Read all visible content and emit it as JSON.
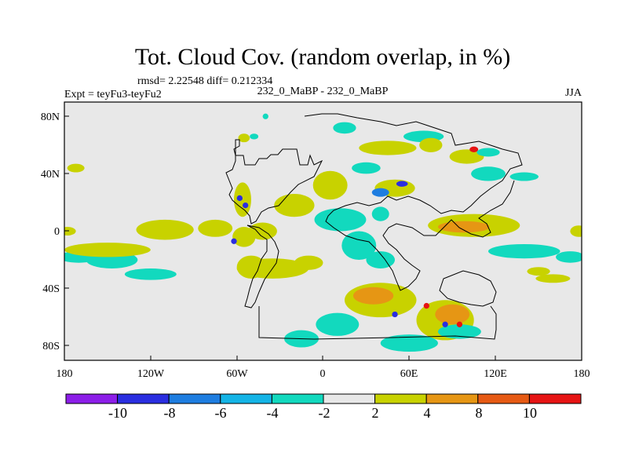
{
  "chart_data": {
    "type": "heatmap",
    "title": "Tot. Cloud Cov. (random overlap, in %)",
    "stats_line": "rmsd= 2.22548 diff= 0.212334",
    "left_label": "Expt = teyFu3-teyFu2",
    "center_label": "232_0_MaBP - 232_0_MaBP",
    "right_label": "JJA",
    "x_axis": {
      "range": [
        -180,
        180
      ],
      "ticks": [
        -180,
        -120,
        -60,
        0,
        60,
        120,
        180
      ],
      "tick_labels": [
        "180",
        "120W",
        "60W",
        "0",
        "60E",
        "120E",
        "180"
      ]
    },
    "y_axis": {
      "range": [
        -90,
        90
      ],
      "ticks": [
        80,
        40,
        0,
        -40,
        -80
      ],
      "tick_labels": [
        "80N",
        "40N",
        "0",
        "40S",
        "80S"
      ]
    },
    "colorbar": {
      "levels": [
        "-10",
        "-8",
        "-6",
        "-4",
        "-2",
        "2",
        "4",
        "8",
        "10"
      ],
      "colors": [
        "#8c1ee8",
        "#2a2ee0",
        "#1e7de0",
        "#14b4e6",
        "#12d9be",
        "#e8e8e8",
        "#c8d200",
        "#e69614",
        "#e65a14",
        "#e61414"
      ]
    },
    "blobs": [
      {
        "lon": -170,
        "lat": -18,
        "rx": 14,
        "ry": 4,
        "level": "-4"
      },
      {
        "lon": -147,
        "lat": -20,
        "rx": 18,
        "ry": 6,
        "level": "-4"
      },
      {
        "lon": -120,
        "lat": -30,
        "rx": 18,
        "ry": 4,
        "level": "-4"
      },
      {
        "lon": -150,
        "lat": -13,
        "rx": 30,
        "ry": 5,
        "level": "2"
      },
      {
        "lon": -140,
        "lat": -14,
        "rx": 8,
        "ry": 2,
        "level": "4"
      },
      {
        "lon": -172,
        "lat": 44,
        "rx": 6,
        "ry": 3,
        "level": "2"
      },
      {
        "lon": -178,
        "lat": 0,
        "rx": 6,
        "ry": 3,
        "level": "2"
      },
      {
        "lon": -110,
        "lat": 1,
        "rx": 20,
        "ry": 7,
        "level": "2"
      },
      {
        "lon": -75,
        "lat": 2,
        "rx": 12,
        "ry": 6,
        "level": "2"
      },
      {
        "lon": -56,
        "lat": 22,
        "rx": 6,
        "ry": 12,
        "level": "2"
      },
      {
        "lon": -58,
        "lat": 23,
        "rx": 2,
        "ry": 2,
        "level": "-8"
      },
      {
        "lon": -54,
        "lat": 18,
        "rx": 2,
        "ry": 2,
        "level": "-8"
      },
      {
        "lon": -55,
        "lat": -4,
        "rx": 8,
        "ry": 7,
        "level": "4"
      },
      {
        "lon": -62,
        "lat": -7,
        "rx": 2,
        "ry": 2,
        "level": "-8"
      },
      {
        "lon": -50,
        "lat": -25,
        "rx": 10,
        "ry": 8,
        "level": "4"
      },
      {
        "lon": -42,
        "lat": 0,
        "rx": 10,
        "ry": 6,
        "level": "2"
      },
      {
        "lon": -35,
        "lat": -26,
        "rx": 25,
        "ry": 7,
        "level": "2"
      },
      {
        "lon": -10,
        "lat": -22,
        "rx": 10,
        "ry": 5,
        "level": "2"
      },
      {
        "lon": -20,
        "lat": 18,
        "rx": 14,
        "ry": 8,
        "level": "2"
      },
      {
        "lon": -18,
        "lat": 14,
        "rx": 6,
        "ry": 3,
        "level": "4"
      },
      {
        "lon": 5,
        "lat": 32,
        "rx": 12,
        "ry": 10,
        "level": "2"
      },
      {
        "lon": 12,
        "lat": 8,
        "rx": 18,
        "ry": 8,
        "level": "-4"
      },
      {
        "lon": 25,
        "lat": -10,
        "rx": 12,
        "ry": 10,
        "level": "-4"
      },
      {
        "lon": 40,
        "lat": -20,
        "rx": 10,
        "ry": 6,
        "level": "-4"
      },
      {
        "lon": 40,
        "lat": 12,
        "rx": 6,
        "ry": 5,
        "level": "-4"
      },
      {
        "lon": 50,
        "lat": 30,
        "rx": 14,
        "ry": 6,
        "level": "2"
      },
      {
        "lon": 40,
        "lat": 27,
        "rx": 6,
        "ry": 3,
        "level": "-6"
      },
      {
        "lon": 55,
        "lat": 33,
        "rx": 4,
        "ry": 2,
        "level": "-8"
      },
      {
        "lon": 45,
        "lat": 58,
        "rx": 20,
        "ry": 5,
        "level": "2"
      },
      {
        "lon": 70,
        "lat": 66,
        "rx": 14,
        "ry": 4,
        "level": "-4"
      },
      {
        "lon": 15,
        "lat": 72,
        "rx": 8,
        "ry": 4,
        "level": "-4"
      },
      {
        "lon": 30,
        "lat": 44,
        "rx": 10,
        "ry": 4,
        "level": "-4"
      },
      {
        "lon": 75,
        "lat": 60,
        "rx": 8,
        "ry": 5,
        "level": "4"
      },
      {
        "lon": 100,
        "lat": 52,
        "rx": 12,
        "ry": 5,
        "level": "4"
      },
      {
        "lon": 105,
        "lat": 57,
        "rx": 3,
        "ry": 2,
        "level": "10"
      },
      {
        "lon": 115,
        "lat": 55,
        "rx": 8,
        "ry": 3,
        "level": "-4"
      },
      {
        "lon": 115,
        "lat": 40,
        "rx": 12,
        "ry": 5,
        "level": "-4"
      },
      {
        "lon": 140,
        "lat": 38,
        "rx": 10,
        "ry": 3,
        "level": "-4"
      },
      {
        "lon": 105,
        "lat": 4,
        "rx": 32,
        "ry": 8,
        "level": "4"
      },
      {
        "lon": 98,
        "lat": 3,
        "rx": 18,
        "ry": 4,
        "level": "8"
      },
      {
        "lon": 125,
        "lat": 2,
        "rx": 10,
        "ry": 3,
        "level": "2"
      },
      {
        "lon": 140,
        "lat": -14,
        "rx": 25,
        "ry": 5,
        "level": "-4"
      },
      {
        "lon": 172,
        "lat": -18,
        "rx": 10,
        "ry": 4,
        "level": "-4"
      },
      {
        "lon": 178,
        "lat": 0,
        "rx": 6,
        "ry": 4,
        "level": "2"
      },
      {
        "lon": 160,
        "lat": -33,
        "rx": 12,
        "ry": 3,
        "level": "2"
      },
      {
        "lon": 150,
        "lat": -28,
        "rx": 8,
        "ry": 3,
        "level": "2"
      },
      {
        "lon": 40,
        "lat": -48,
        "rx": 25,
        "ry": 12,
        "level": "4"
      },
      {
        "lon": 35,
        "lat": -45,
        "rx": 14,
        "ry": 6,
        "level": "8"
      },
      {
        "lon": 85,
        "lat": -62,
        "rx": 20,
        "ry": 14,
        "level": "4"
      },
      {
        "lon": 90,
        "lat": -58,
        "rx": 12,
        "ry": 7,
        "level": "8"
      },
      {
        "lon": 10,
        "lat": -65,
        "rx": 15,
        "ry": 8,
        "level": "-4"
      },
      {
        "lon": 60,
        "lat": -78,
        "rx": 20,
        "ry": 6,
        "level": "-4"
      },
      {
        "lon": 95,
        "lat": -70,
        "rx": 15,
        "ry": 5,
        "level": "-4"
      },
      {
        "lon": -15,
        "lat": -75,
        "rx": 12,
        "ry": 6,
        "level": "-4"
      },
      {
        "lon": 50,
        "lat": -58,
        "rx": 2,
        "ry": 2,
        "level": "-8"
      },
      {
        "lon": 85,
        "lat": -65,
        "rx": 2,
        "ry": 2,
        "level": "-8"
      },
      {
        "lon": 95,
        "lat": -65,
        "rx": 2,
        "ry": 2,
        "level": "10"
      },
      {
        "lon": 72,
        "lat": -52,
        "rx": 2,
        "ry": 2,
        "level": "10"
      },
      {
        "lon": 125,
        "lat": -58,
        "rx": 5,
        "ry": 3,
        "level": "-2"
      },
      {
        "lon": -55,
        "lat": 65,
        "rx": 4,
        "ry": 3,
        "level": "2"
      },
      {
        "lon": -40,
        "lat": 80,
        "rx": 2,
        "ry": 2,
        "level": "-4"
      },
      {
        "lon": -48,
        "lat": 66,
        "rx": 3,
        "ry": 2,
        "level": "-4"
      }
    ]
  }
}
